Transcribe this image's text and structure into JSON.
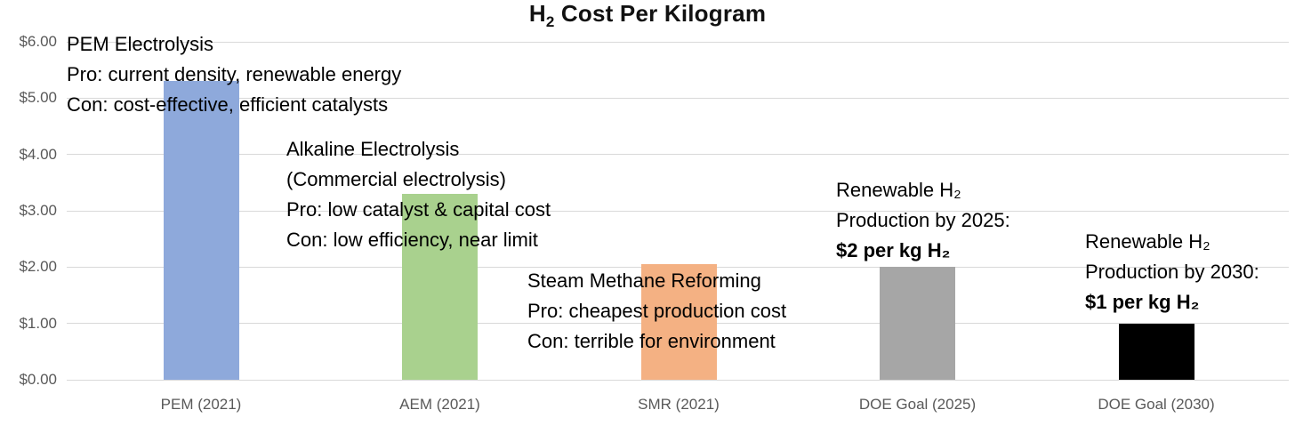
{
  "title": {
    "prefix": "H",
    "subscript": "2",
    "rest": " Cost Per Kilogram"
  },
  "colors": {
    "background": "#ffffff",
    "gridline": "#d9d9d9",
    "axis_text": "#595959",
    "annotation_text": "#000000"
  },
  "chart_data": {
    "type": "bar",
    "title": "H₂ Cost Per Kilogram",
    "xlabel": "",
    "ylabel": "",
    "ylim": [
      0,
      6
    ],
    "grid": true,
    "legend": false,
    "categories": [
      "PEM (2021)",
      "AEM (2021)",
      "SMR (2021)",
      "DOE Goal (2025)",
      "DOE Goal (2030)"
    ],
    "values": [
      5.3,
      3.3,
      2.05,
      2.0,
      1.0
    ],
    "bar_colors": [
      "#8ea9db",
      "#a9d18e",
      "#f4b183",
      "#a6a6a6",
      "#000000"
    ],
    "yticks": [
      "$0.00",
      "$1.00",
      "$2.00",
      "$3.00",
      "$4.00",
      "$5.00",
      "$6.00"
    ],
    "annotations": [
      {
        "target": "PEM (2021)",
        "lines": [
          {
            "text": "PEM Electrolysis",
            "bold": false
          },
          {
            "text": "Pro: current density, renewable energy",
            "bold": false
          },
          {
            "text": "Con: cost-effective, efficient catalysts",
            "bold": false
          }
        ]
      },
      {
        "target": "AEM (2021)",
        "lines": [
          {
            "text": "Alkaline Electrolysis",
            "bold": false
          },
          {
            "text": "(Commercial electrolysis)",
            "bold": false
          },
          {
            "text": "Pro: low catalyst & capital cost",
            "bold": false
          },
          {
            "text": "Con: low efficiency, near limit",
            "bold": false
          }
        ]
      },
      {
        "target": "SMR (2021)",
        "lines": [
          {
            "text": "Steam Methane Reforming",
            "bold": false
          },
          {
            "text": "Pro: cheapest production cost",
            "bold": false
          },
          {
            "text": "Con: terrible for environment",
            "bold": false
          }
        ]
      },
      {
        "target": "DOE Goal (2025)",
        "lines": [
          {
            "text": "Renewable H₂",
            "bold": false
          },
          {
            "text": "Production by 2025:",
            "bold": false
          },
          {
            "text": "$2 per kg H₂",
            "bold": true
          }
        ]
      },
      {
        "target": "DOE Goal (2030)",
        "lines": [
          {
            "text": "Renewable H₂",
            "bold": false
          },
          {
            "text": "Production by 2030:",
            "bold": false
          },
          {
            "text": "$1 per kg H₂",
            "bold": true
          }
        ]
      }
    ]
  }
}
